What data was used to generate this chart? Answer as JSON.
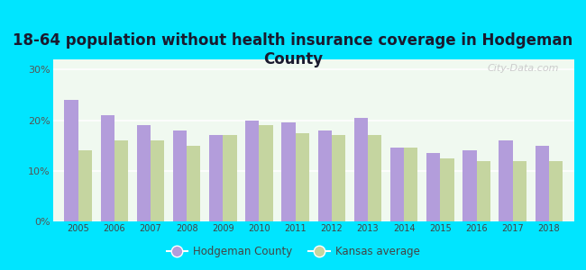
{
  "title": "18-64 population without health insurance coverage in Hodgeman\nCounty",
  "years": [
    2005,
    2006,
    2007,
    2008,
    2009,
    2010,
    2011,
    2012,
    2013,
    2014,
    2015,
    2016,
    2017,
    2018
  ],
  "hodgeman": [
    24.0,
    21.0,
    19.0,
    18.0,
    17.0,
    20.0,
    19.5,
    18.0,
    20.5,
    14.5,
    13.5,
    14.0,
    16.0,
    15.0
  ],
  "kansas": [
    14.0,
    16.0,
    16.0,
    15.0,
    17.0,
    19.0,
    17.5,
    17.0,
    17.0,
    14.5,
    12.5,
    12.0,
    12.0,
    12.0
  ],
  "hodgeman_color": "#b39ddb",
  "kansas_color": "#c5d5a0",
  "background_outer": "#00e5ff",
  "background_plot_top": "#e8f5e9",
  "background_plot_bottom": "#ffffff",
  "title_fontsize": 12,
  "title_color": "#1a1a2e",
  "yticks": [
    0,
    10,
    20,
    30
  ],
  "ylim": [
    0,
    32
  ],
  "bar_width": 0.38,
  "legend_hodgeman": "Hodgeman County",
  "legend_kansas": "Kansas average",
  "watermark": "City-Data.com"
}
